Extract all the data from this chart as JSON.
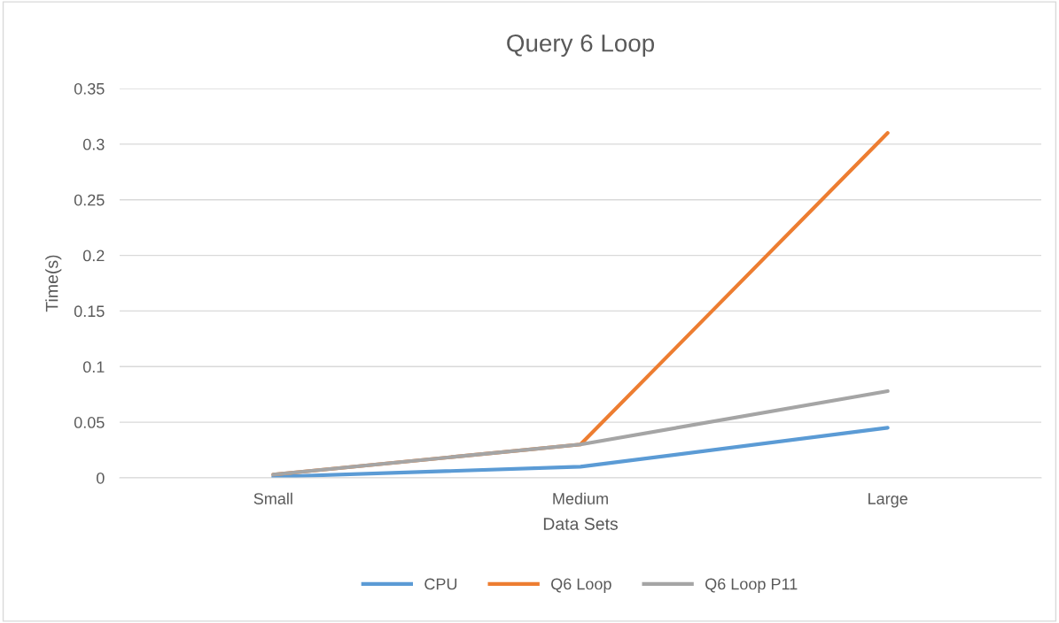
{
  "chart_data": {
    "type": "line",
    "title": "Query 6 Loop",
    "xlabel": "Data Sets",
    "ylabel": "Time(s)",
    "categories": [
      "Small",
      "Medium",
      "Large"
    ],
    "series": [
      {
        "name": "CPU",
        "color": "#5b9bd5",
        "values": [
          0.001,
          0.01,
          0.045
        ]
      },
      {
        "name": "Q6 Loop",
        "color": "#ed7d31",
        "values": [
          0.003,
          0.03,
          0.31
        ]
      },
      {
        "name": "Q6 Loop P11",
        "color": "#a5a5a5",
        "values": [
          0.003,
          0.03,
          0.078
        ]
      }
    ],
    "ylim": [
      0,
      0.35
    ],
    "yticks": [
      0,
      0.05,
      0.1,
      0.15,
      0.2,
      0.25,
      0.3,
      0.35
    ],
    "grid": "y",
    "legend": "bottom",
    "marker": "none",
    "line_style": "solid"
  }
}
